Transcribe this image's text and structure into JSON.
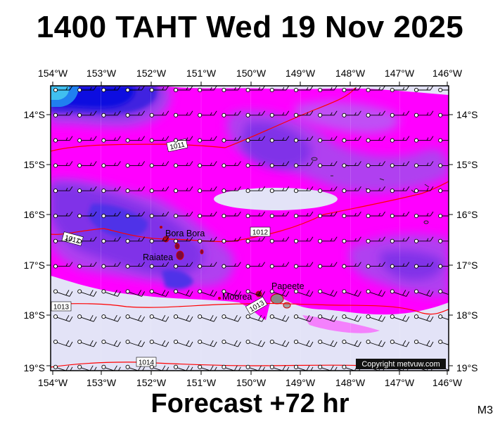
{
  "title": "1400 TAHT Wed 19 Nov 2025",
  "footer": "Forecast +72 hr",
  "model_code": "M3",
  "copyright": "Copyright metvuw.com",
  "map": {
    "lon_labels": [
      "154°W",
      "153°W",
      "152°W",
      "151°W",
      "150°W",
      "149°W",
      "148°W",
      "147°W",
      "146°W"
    ],
    "lat_labels": [
      "14°S",
      "15°S",
      "16°S",
      "17°S",
      "18°S",
      "19°S"
    ],
    "places": [
      "Bora Bora",
      "Raiatea",
      "Moorea",
      "Papeete"
    ],
    "isobars": [
      "1011",
      "1012",
      "1012",
      "1013",
      "1013",
      "1014"
    ],
    "colors": {
      "low": "#e3e3f7",
      "magenta": "#ff00ff",
      "violet": "#b040f0",
      "purple": "#8030e8",
      "blue": "#4020e0",
      "deep_blue": "#1010e0",
      "cyan": "#40c0f0",
      "isobar": "#ff0000"
    }
  }
}
